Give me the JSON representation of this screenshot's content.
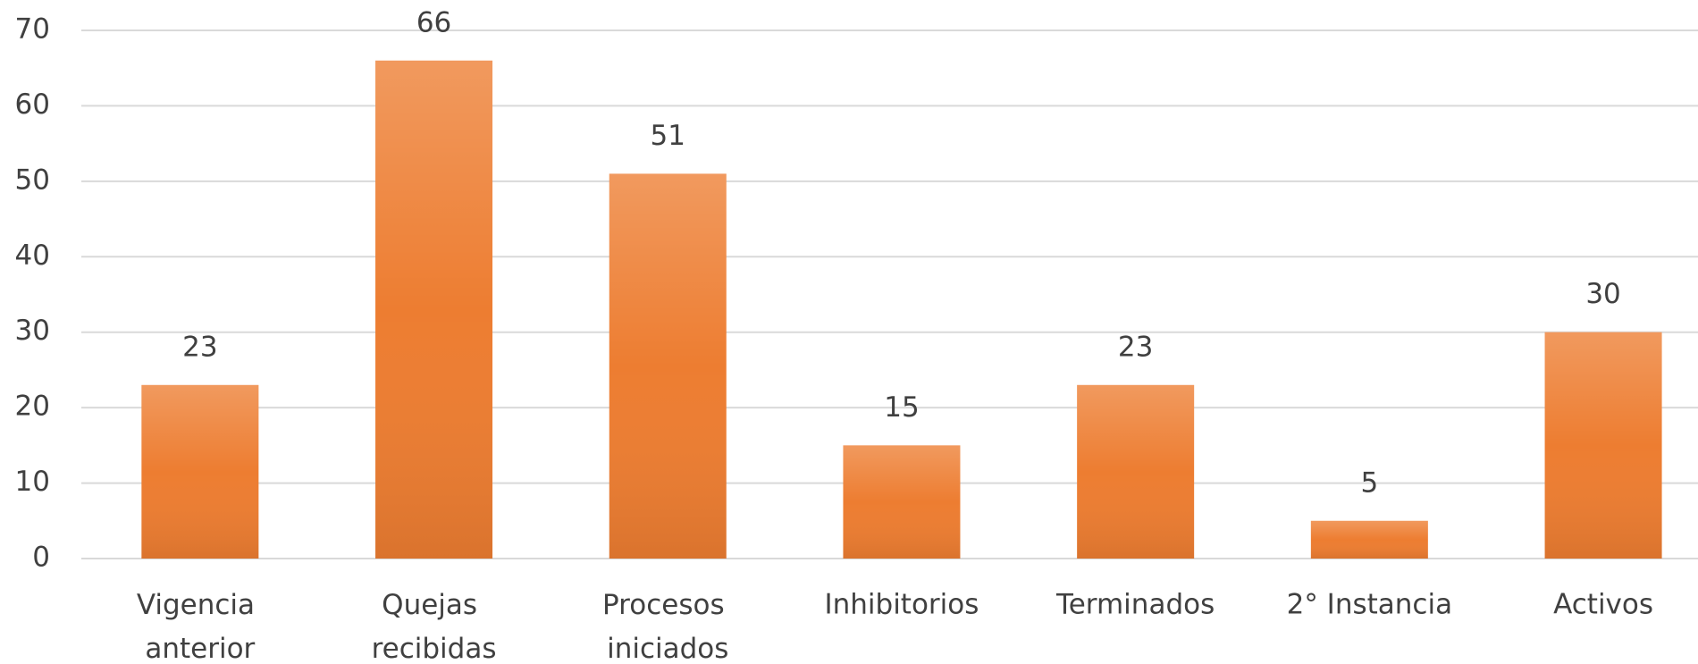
{
  "chart_data": {
    "type": "bar",
    "categories": [
      "Vigencia anterior",
      "Quejas recibidas",
      "Procesos iniciados",
      "Inhibitorios",
      "Terminados",
      "2° Instancia",
      "Activos"
    ],
    "values": [
      23,
      66,
      51,
      15,
      23,
      5,
      30
    ],
    "color": "#ed7d31",
    "ylim": [
      0,
      70
    ],
    "yticks": [
      0,
      10,
      20,
      30,
      40,
      50,
      60,
      70
    ],
    "grid": true
  }
}
